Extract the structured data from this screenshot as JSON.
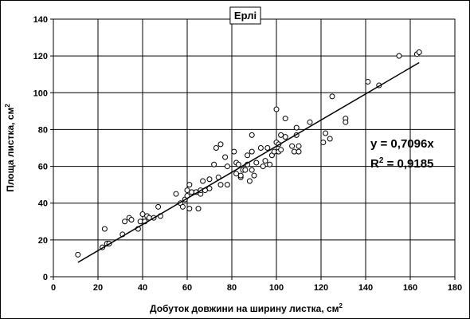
{
  "chart_data": {
    "type": "scatter",
    "title": "Ерлі",
    "xlabel": "Добуток довжини на ширину листка, см",
    "xlabel_sup": "2",
    "ylabel": "Площа листка, см",
    "ylabel_sup": "2",
    "xlim": [
      0,
      180
    ],
    "ylim": [
      0,
      140
    ],
    "xticks": [
      0,
      20,
      40,
      60,
      80,
      100,
      120,
      140,
      160,
      180
    ],
    "yticks": [
      0,
      20,
      40,
      60,
      80,
      100,
      120,
      140
    ],
    "grid": true,
    "marker": "open-circle",
    "trendline": {
      "slope": 0.7096,
      "x_range": [
        11,
        164
      ]
    },
    "equation": "y = 0,7096x",
    "r2_label": "R",
    "r2_sup": "2",
    "r2_value": " = 0,9185",
    "points": [
      [
        11,
        12
      ],
      [
        22,
        16
      ],
      [
        24,
        18
      ],
      [
        23,
        26
      ],
      [
        25,
        18
      ],
      [
        31,
        23
      ],
      [
        32,
        30
      ],
      [
        34,
        32
      ],
      [
        35,
        31
      ],
      [
        38,
        26
      ],
      [
        39,
        30
      ],
      [
        40,
        34
      ],
      [
        41,
        30
      ],
      [
        42,
        33
      ],
      [
        43,
        32
      ],
      [
        45,
        32
      ],
      [
        47,
        38
      ],
      [
        48,
        33
      ],
      [
        55,
        45
      ],
      [
        57,
        40
      ],
      [
        58,
        38
      ],
      [
        59,
        42
      ],
      [
        60,
        44
      ],
      [
        60,
        47
      ],
      [
        61,
        50
      ],
      [
        61,
        37
      ],
      [
        62,
        46
      ],
      [
        64,
        46
      ],
      [
        65,
        37
      ],
      [
        66,
        45
      ],
      [
        66,
        47
      ],
      [
        67,
        52
      ],
      [
        68,
        47
      ],
      [
        70,
        53
      ],
      [
        70,
        48
      ],
      [
        72,
        61
      ],
      [
        73,
        70
      ],
      [
        74,
        54
      ],
      [
        75,
        72
      ],
      [
        75,
        50
      ],
      [
        77,
        65
      ],
      [
        78,
        50
      ],
      [
        78,
        60
      ],
      [
        81,
        68
      ],
      [
        82,
        56
      ],
      [
        82,
        62
      ],
      [
        83,
        61
      ],
      [
        84,
        54
      ],
      [
        84,
        55
      ],
      [
        85,
        58
      ],
      [
        86,
        58
      ],
      [
        87,
        66
      ],
      [
        87,
        61
      ],
      [
        88,
        52
      ],
      [
        89,
        58
      ],
      [
        89,
        68
      ],
      [
        89,
        77
      ],
      [
        90,
        55
      ],
      [
        91,
        62
      ],
      [
        93,
        70
      ],
      [
        94,
        60
      ],
      [
        95,
        63
      ],
      [
        96,
        70
      ],
      [
        97,
        61
      ],
      [
        98,
        66
      ],
      [
        99,
        68
      ],
      [
        100,
        91
      ],
      [
        100,
        73
      ],
      [
        101,
        72
      ],
      [
        101,
        68
      ],
      [
        102,
        69
      ],
      [
        102,
        77
      ],
      [
        104,
        76
      ],
      [
        104,
        86
      ],
      [
        107,
        71
      ],
      [
        108,
        68
      ],
      [
        109,
        77
      ],
      [
        109,
        81
      ],
      [
        110,
        71
      ],
      [
        110,
        68
      ],
      [
        115,
        84
      ],
      [
        121,
        73
      ],
      [
        122,
        78
      ],
      [
        124,
        75
      ],
      [
        125,
        98
      ],
      [
        131,
        86
      ],
      [
        131,
        84
      ],
      [
        141,
        106
      ],
      [
        146,
        104
      ],
      [
        155,
        120
      ],
      [
        163,
        121
      ],
      [
        164,
        122
      ]
    ]
  }
}
